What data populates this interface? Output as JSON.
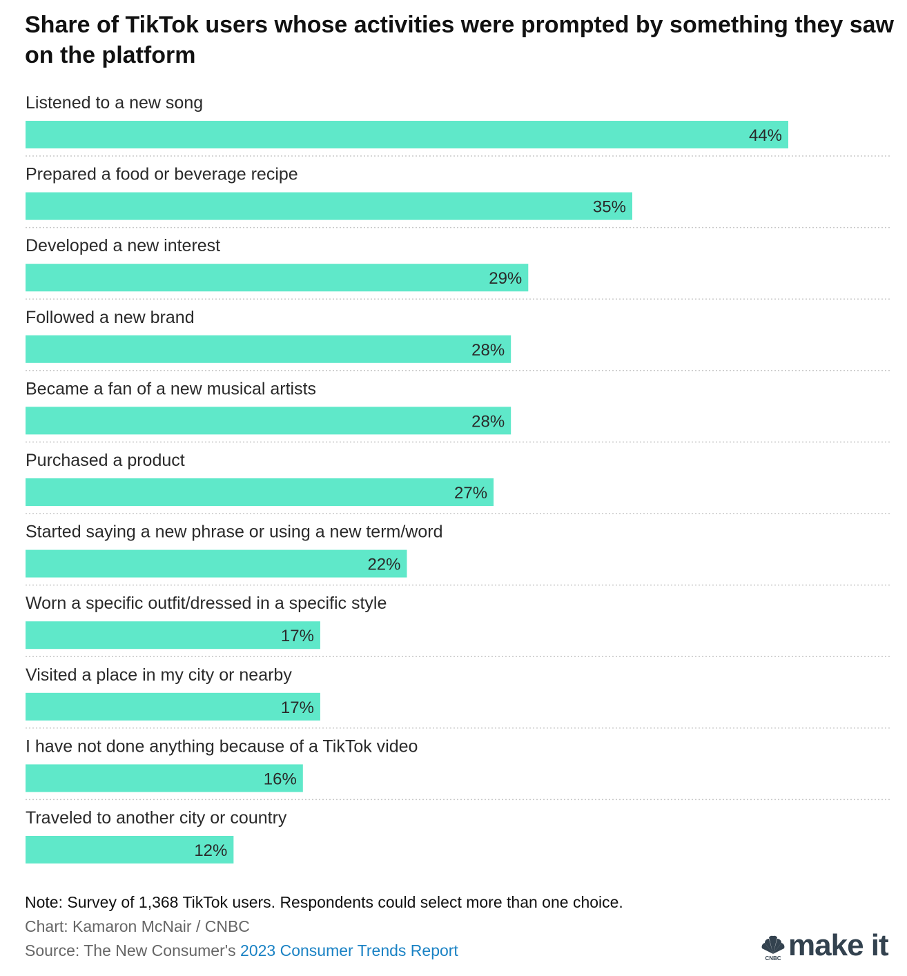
{
  "title": "Share of TikTok users whose activities were prompted by something they saw on the platform",
  "chart_data": {
    "type": "bar",
    "orientation": "horizontal",
    "categories": [
      "Listened to a new song",
      "Prepared a food or beverage recipe",
      "Developed a new interest",
      "Followed a new brand",
      "Became a fan of a new musical artists",
      "Purchased a product",
      "Started saying a new phrase or using a new term/word",
      "Worn a specific outfit/dressed in a specific style",
      "Visited a place in my city or nearby",
      "I have not done anything because of a TikTok video",
      "Traveled to another city or country"
    ],
    "values": [
      44,
      35,
      29,
      28,
      28,
      27,
      22,
      17,
      17,
      16,
      12
    ],
    "value_labels": [
      "44%",
      "35%",
      "29%",
      "28%",
      "28%",
      "27%",
      "22%",
      "17%",
      "17%",
      "16%",
      "12%"
    ],
    "xlim": [
      0,
      50
    ],
    "bar_color": "#5fe8c9",
    "grid": false,
    "legend": "none"
  },
  "footer": {
    "note": "Note: Survey of 1,368 TikTok users. Respondents could select more than one choice.",
    "credit": "Chart: Kamaron McNair / CNBC",
    "source_prefix": "Source: The New Consumer's ",
    "source_link": "2023 Consumer Trends Report"
  },
  "logo": {
    "brand": "CNBC",
    "text": "make it",
    "text_color": "#33424f",
    "icon": "nbc-peacock-icon"
  }
}
